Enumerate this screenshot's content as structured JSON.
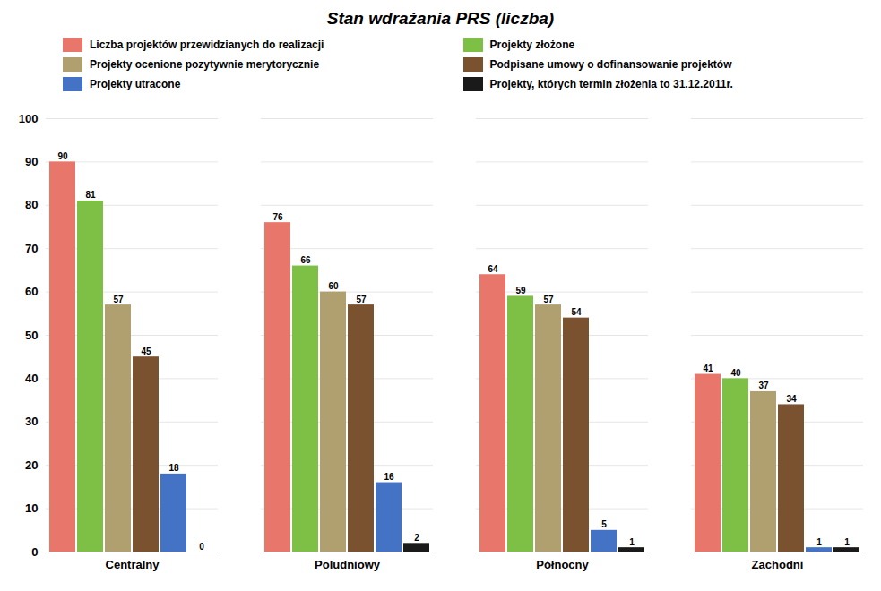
{
  "chart_data": {
    "type": "bar",
    "title": "Stan wdrażania PRS (liczba)",
    "categories": [
      "Centralny",
      "Poludniowy",
      "Północny",
      "Zachodni"
    ],
    "series": [
      {
        "name": "Liczba projektów przewidzianych do realizacji",
        "color": "#E8766A",
        "values": [
          90,
          76,
          64,
          41
        ]
      },
      {
        "name": "Projekty złożone",
        "color": "#7DC045",
        "values": [
          81,
          66,
          59,
          40
        ]
      },
      {
        "name": "Projekty ocenione pozytywnie merytorycznie",
        "color": "#B0A070",
        "values": [
          57,
          60,
          57,
          37
        ]
      },
      {
        "name": "Podpisane umowy o dofinansowanie projektów",
        "color": "#7B5230",
        "values": [
          45,
          57,
          54,
          34
        ]
      },
      {
        "name": "Projekty utracone",
        "color": "#4472C4",
        "values": [
          18,
          16,
          5,
          1
        ]
      },
      {
        "name": "Projekty, których termin złożenia to 31.12.2011r.",
        "color": "#1A1A1A",
        "values": [
          0,
          2,
          1,
          1
        ]
      }
    ],
    "ylim": [
      0,
      100
    ],
    "yticks": [
      0,
      10,
      20,
      30,
      40,
      50,
      60,
      70,
      80,
      90,
      100
    ],
    "grid": true,
    "data_labels": true,
    "legend": "top"
  }
}
